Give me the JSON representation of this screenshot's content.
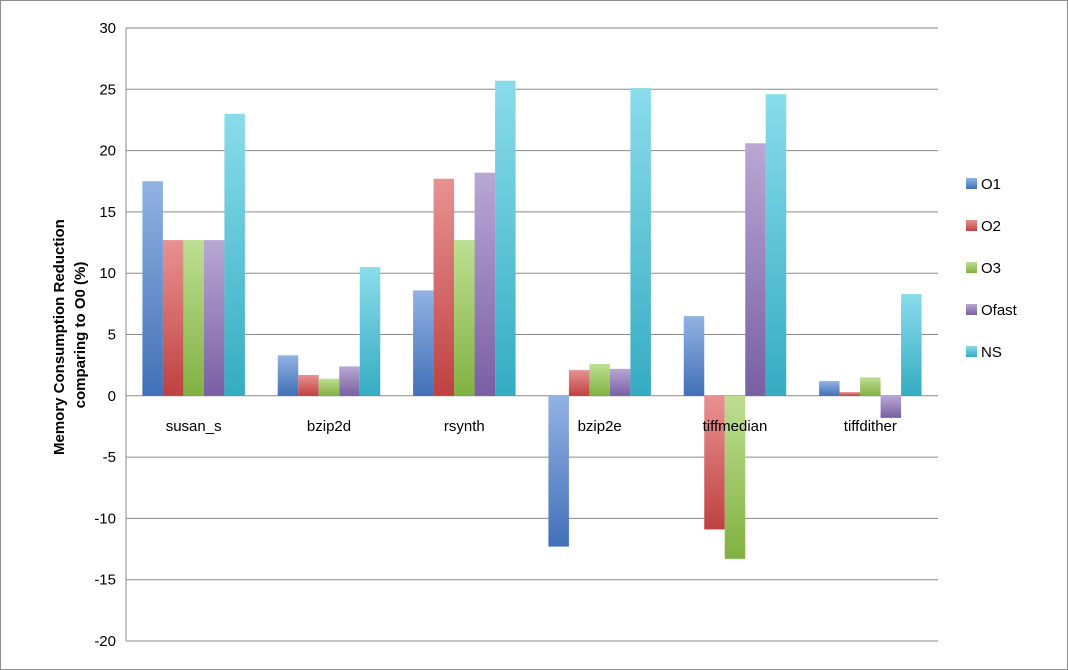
{
  "chart_data": {
    "type": "bar",
    "title": "",
    "xlabel": "",
    "ylabel": "Memory Consumption Reduction comparing to O0 (%)",
    "ylabel_lines": [
      "Memory Consumption Reduction",
      "comparing to O0 (%)"
    ],
    "ylim": [
      -20,
      30
    ],
    "yticks": [
      30,
      25,
      20,
      15,
      10,
      5,
      0,
      -5,
      -10,
      -15,
      -20
    ],
    "grid": true,
    "legend_position": "right",
    "categories": [
      "susan_s",
      "bzip2d",
      "rsynth",
      "bzip2e",
      "tiffmedian",
      "tiffdither"
    ],
    "series": [
      {
        "name": "O1",
        "color": "#4a7fd0",
        "values": [
          17.5,
          3.3,
          8.6,
          -12.3,
          6.5,
          1.2
        ]
      },
      {
        "name": "O2",
        "color": "#d94a4a",
        "values": [
          12.7,
          1.7,
          17.7,
          2.1,
          -10.9,
          0.3
        ]
      },
      {
        "name": "O3",
        "color": "#93c94a",
        "values": [
          12.7,
          1.4,
          12.7,
          2.6,
          -13.3,
          1.5
        ]
      },
      {
        "name": "Ofast",
        "color": "#8a6cb8",
        "values": [
          12.7,
          2.4,
          18.2,
          2.2,
          20.6,
          -1.8
        ]
      },
      {
        "name": "NS",
        "color": "#3cc4dc",
        "values": [
          23.0,
          10.5,
          25.7,
          25.1,
          24.6,
          8.3
        ]
      }
    ]
  }
}
